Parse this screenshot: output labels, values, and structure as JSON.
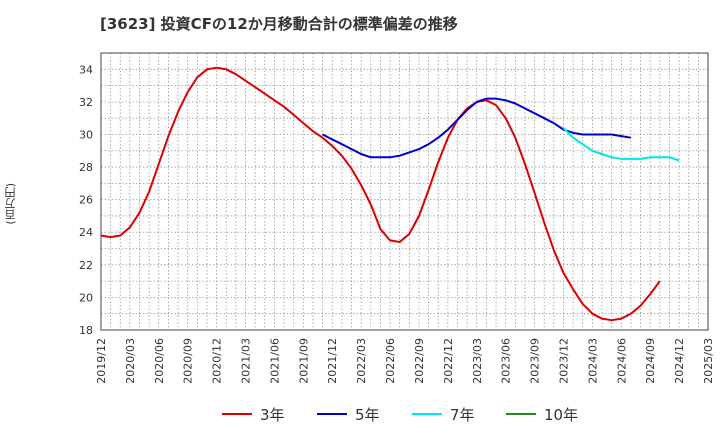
{
  "title": "[3623]  投資CFの12か月移動合計の標準偏差の推移",
  "chart_data": {
    "type": "line",
    "ylabel": "(百万円)",
    "ylim": [
      18,
      35
    ],
    "yticks": [
      18,
      20,
      22,
      24,
      26,
      28,
      30,
      32,
      34
    ],
    "xlim": [
      "2019/12",
      "2025/03"
    ],
    "xticks": [
      "2019/12",
      "2020/03",
      "2020/06",
      "2020/09",
      "2020/12",
      "2021/03",
      "2021/06",
      "2021/09",
      "2021/12",
      "2022/03",
      "2022/06",
      "2022/09",
      "2022/12",
      "2023/03",
      "2023/06",
      "2023/09",
      "2023/12",
      "2024/03",
      "2024/06",
      "2024/09",
      "2024/12",
      "2025/03"
    ],
    "grid": true,
    "legend_position": "bottom",
    "series": [
      {
        "name": "3年",
        "color": "#dd0000",
        "points": [
          [
            "2019/12",
            23.8
          ],
          [
            "2020/01",
            23.7
          ],
          [
            "2020/02",
            23.8
          ],
          [
            "2020/03",
            24.3
          ],
          [
            "2020/04",
            25.2
          ],
          [
            "2020/05",
            26.5
          ],
          [
            "2020/06",
            28.2
          ],
          [
            "2020/07",
            29.9
          ],
          [
            "2020/08",
            31.4
          ],
          [
            "2020/09",
            32.6
          ],
          [
            "2020/10",
            33.5
          ],
          [
            "2020/11",
            34.0
          ],
          [
            "2020/12",
            34.1
          ],
          [
            "2021/01",
            34.0
          ],
          [
            "2021/02",
            33.7
          ],
          [
            "2021/03",
            33.3
          ],
          [
            "2021/04",
            32.9
          ],
          [
            "2021/05",
            32.5
          ],
          [
            "2021/06",
            32.1
          ],
          [
            "2021/07",
            31.7
          ],
          [
            "2021/08",
            31.2
          ],
          [
            "2021/09",
            30.7
          ],
          [
            "2021/10",
            30.2
          ],
          [
            "2021/11",
            29.8
          ],
          [
            "2021/12",
            29.3
          ],
          [
            "2022/01",
            28.7
          ],
          [
            "2022/02",
            27.9
          ],
          [
            "2022/03",
            26.9
          ],
          [
            "2022/04",
            25.7
          ],
          [
            "2022/05",
            24.2
          ],
          [
            "2022/06",
            23.5
          ],
          [
            "2022/07",
            23.4
          ],
          [
            "2022/08",
            23.9
          ],
          [
            "2022/09",
            25.0
          ],
          [
            "2022/10",
            26.6
          ],
          [
            "2022/11",
            28.3
          ],
          [
            "2022/12",
            29.8
          ],
          [
            "2023/01",
            30.9
          ],
          [
            "2023/02",
            31.6
          ],
          [
            "2023/03",
            32.0
          ],
          [
            "2023/04",
            32.1
          ],
          [
            "2023/05",
            31.8
          ],
          [
            "2023/06",
            31.0
          ],
          [
            "2023/07",
            29.8
          ],
          [
            "2023/08",
            28.2
          ],
          [
            "2023/09",
            26.4
          ],
          [
            "2023/10",
            24.6
          ],
          [
            "2023/11",
            22.9
          ],
          [
            "2023/12",
            21.5
          ],
          [
            "2024/01",
            20.5
          ],
          [
            "2024/02",
            19.6
          ],
          [
            "2024/03",
            19.0
          ],
          [
            "2024/04",
            18.7
          ],
          [
            "2024/05",
            18.6
          ],
          [
            "2024/06",
            18.7
          ],
          [
            "2024/07",
            19.0
          ],
          [
            "2024/08",
            19.5
          ],
          [
            "2024/09",
            20.2
          ],
          [
            "2024/10",
            21.0
          ]
        ]
      },
      {
        "name": "5年",
        "color": "#0000cc",
        "points": [
          [
            "2021/11",
            30.0
          ],
          [
            "2021/12",
            29.7
          ],
          [
            "2022/01",
            29.4
          ],
          [
            "2022/02",
            29.1
          ],
          [
            "2022/03",
            28.8
          ],
          [
            "2022/04",
            28.6
          ],
          [
            "2022/05",
            28.6
          ],
          [
            "2022/06",
            28.6
          ],
          [
            "2022/07",
            28.7
          ],
          [
            "2022/08",
            28.9
          ],
          [
            "2022/09",
            29.1
          ],
          [
            "2022/10",
            29.4
          ],
          [
            "2022/11",
            29.8
          ],
          [
            "2022/12",
            30.3
          ],
          [
            "2023/01",
            30.9
          ],
          [
            "2023/02",
            31.5
          ],
          [
            "2023/03",
            32.0
          ],
          [
            "2023/04",
            32.2
          ],
          [
            "2023/05",
            32.2
          ],
          [
            "2023/06",
            32.1
          ],
          [
            "2023/07",
            31.9
          ],
          [
            "2023/08",
            31.6
          ],
          [
            "2023/09",
            31.3
          ],
          [
            "2023/10",
            31.0
          ],
          [
            "2023/11",
            30.7
          ],
          [
            "2023/12",
            30.3
          ],
          [
            "2024/01",
            30.1
          ],
          [
            "2024/02",
            30.0
          ],
          [
            "2024/03",
            30.0
          ],
          [
            "2024/04",
            30.0
          ],
          [
            "2024/05",
            30.0
          ],
          [
            "2024/06",
            29.9
          ],
          [
            "2024/07",
            29.8
          ]
        ]
      },
      {
        "name": "7年",
        "color": "#00e5e5",
        "points": [
          [
            "2023/12",
            30.4
          ],
          [
            "2024/01",
            29.8
          ],
          [
            "2024/02",
            29.4
          ],
          [
            "2024/03",
            29.0
          ],
          [
            "2024/04",
            28.8
          ],
          [
            "2024/05",
            28.6
          ],
          [
            "2024/06",
            28.5
          ],
          [
            "2024/07",
            28.5
          ],
          [
            "2024/08",
            28.5
          ],
          [
            "2024/09",
            28.6
          ],
          [
            "2024/10",
            28.6
          ],
          [
            "2024/11",
            28.6
          ],
          [
            "2024/12",
            28.4
          ]
        ]
      },
      {
        "name": "10年",
        "color": "#228b22",
        "points": []
      }
    ]
  }
}
